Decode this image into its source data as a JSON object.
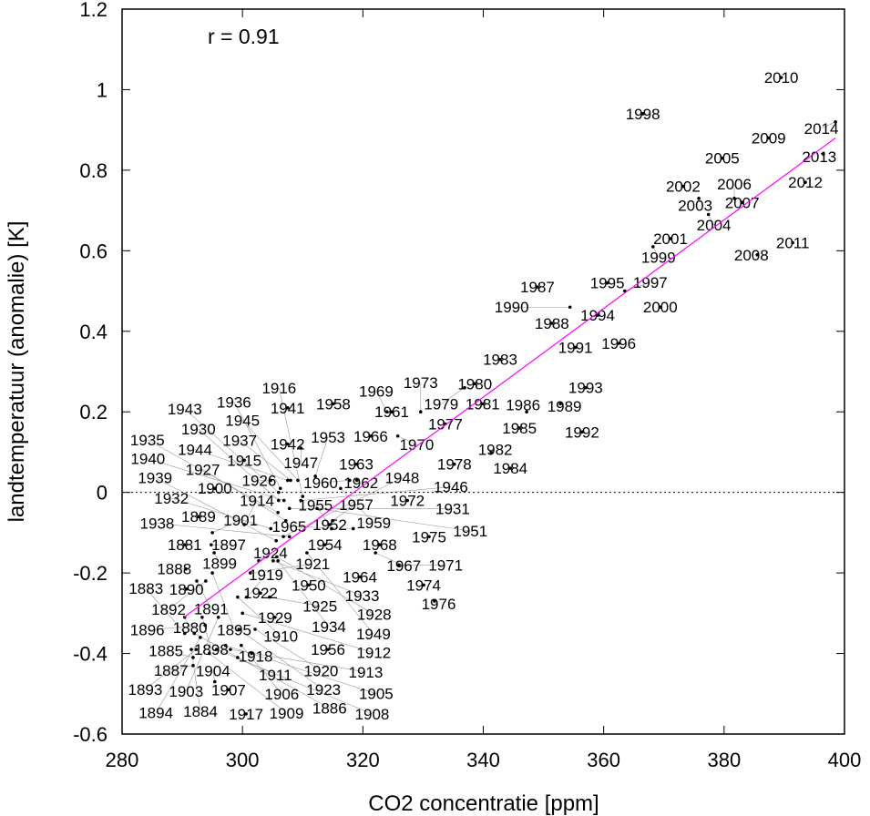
{
  "chart_data": {
    "type": "scatter",
    "title": "",
    "xlabel": "CO2 concentratie [ppm]",
    "ylabel": "landtemperatuur (anomalie) [K]",
    "xlim": [
      280,
      400
    ],
    "ylim": [
      -0.6,
      1.2
    ],
    "xticks": [
      280,
      300,
      320,
      340,
      360,
      380,
      400
    ],
    "yticks": [
      -0.6,
      -0.4,
      -0.2,
      0,
      0.2,
      0.4,
      0.6,
      0.8,
      1,
      1.2
    ],
    "ytick_labels": [
      "-0.6",
      "-0.4",
      "-0.2",
      "0",
      "0.2",
      "0.4",
      "0.6",
      "0.8",
      "1",
      "1.2"
    ],
    "grid": false,
    "annotation": "r =  0.91",
    "zero_line": "dotted",
    "trendline": {
      "color": "#ff00ff",
      "x": [
        290.3,
        398.5
      ],
      "y": [
        -0.31,
        0.88
      ]
    },
    "point_label_color": "#000000",
    "points": [
      {
        "year": "2010",
        "x": 389.5,
        "y": 1.03
      },
      {
        "year": "2014",
        "x": 398.5,
        "y": 0.92
      },
      {
        "year": "1998",
        "x": 366.5,
        "y": 0.94
      },
      {
        "year": "2009",
        "x": 387.4,
        "y": 0.88
      },
      {
        "year": "2013",
        "x": 396.5,
        "y": 0.84
      },
      {
        "year": "2005",
        "x": 379.7,
        "y": 0.83
      },
      {
        "year": "2012",
        "x": 393.5,
        "y": 0.77
      },
      {
        "year": "2002",
        "x": 373.2,
        "y": 0.76
      },
      {
        "year": "2003",
        "x": 375.8,
        "y": 0.73
      },
      {
        "year": "2006",
        "x": 381.7,
        "y": 0.73
      },
      {
        "year": "2007",
        "x": 383.0,
        "y": 0.72
      },
      {
        "year": "2004",
        "x": 377.4,
        "y": 0.69
      },
      {
        "year": "2001",
        "x": 371.1,
        "y": 0.63
      },
      {
        "year": "1999",
        "x": 368.2,
        "y": 0.61
      },
      {
        "year": "2011",
        "x": 391.4,
        "y": 0.62
      },
      {
        "year": "2008",
        "x": 385.5,
        "y": 0.59
      },
      {
        "year": "1987",
        "x": 349.0,
        "y": 0.51
      },
      {
        "year": "1995",
        "x": 360.6,
        "y": 0.52
      },
      {
        "year": "1997",
        "x": 363.5,
        "y": 0.5
      },
      {
        "year": "2000",
        "x": 369.4,
        "y": 0.46
      },
      {
        "year": "1990",
        "x": 354.4,
        "y": 0.46
      },
      {
        "year": "1994",
        "x": 359.0,
        "y": 0.44
      },
      {
        "year": "1988",
        "x": 351.4,
        "y": 0.42
      },
      {
        "year": "1996",
        "x": 362.5,
        "y": 0.37
      },
      {
        "year": "1991",
        "x": 355.3,
        "y": 0.36
      },
      {
        "year": "1983",
        "x": 342.8,
        "y": 0.33
      },
      {
        "year": "1979",
        "x": 336.9,
        "y": 0.26
      },
      {
        "year": "1980",
        "x": 338.6,
        "y": 0.27
      },
      {
        "year": "1993",
        "x": 357.0,
        "y": 0.26
      },
      {
        "year": "1981",
        "x": 339.9,
        "y": 0.22
      },
      {
        "year": "1989",
        "x": 352.8,
        "y": 0.22
      },
      {
        "year": "1986",
        "x": 347.2,
        "y": 0.2
      },
      {
        "year": "1941",
        "x": 307.5,
        "y": 0.21
      },
      {
        "year": "1958",
        "x": 315.1,
        "y": 0.22
      },
      {
        "year": "1961",
        "x": 324.8,
        "y": 0.2
      },
      {
        "year": "1973",
        "x": 329.6,
        "y": 0.2
      },
      {
        "year": "1977",
        "x": 333.7,
        "y": 0.17
      },
      {
        "year": "1966",
        "x": 321.3,
        "y": 0.14
      },
      {
        "year": "1970",
        "x": 325.8,
        "y": 0.14
      },
      {
        "year": "1985",
        "x": 346.0,
        "y": 0.16
      },
      {
        "year": "1992",
        "x": 356.4,
        "y": 0.15
      },
      {
        "year": "1942",
        "x": 307.5,
        "y": 0.12
      },
      {
        "year": "1947",
        "x": 309.7,
        "y": 0.11
      },
      {
        "year": "1982",
        "x": 341.3,
        "y": 0.1
      },
      {
        "year": "1978",
        "x": 335.2,
        "y": 0.07
      },
      {
        "year": "1984",
        "x": 344.5,
        "y": 0.06
      },
      {
        "year": "1915",
        "x": 300.3,
        "y": 0.08
      },
      {
        "year": "1963",
        "x": 318.9,
        "y": 0.07
      },
      {
        "year": "1900",
        "x": 295.4,
        "y": 0.01
      },
      {
        "year": "1926",
        "x": 304.7,
        "y": 0.03
      },
      {
        "year": "1953",
        "x": 312.1,
        "y": 0.04
      },
      {
        "year": "1960",
        "x": 317.8,
        "y": 0.03
      },
      {
        "year": "1962",
        "x": 319.0,
        "y": 0.03
      },
      {
        "year": "1959",
        "x": 316.3,
        "y": 0.01
      },
      {
        "year": "1972",
        "x": 327.4,
        "y": -0.02
      },
      {
        "year": "1965",
        "x": 318.4,
        "y": -0.09
      },
      {
        "year": "1968",
        "x": 322.8,
        "y": -0.13
      },
      {
        "year": "1975",
        "x": 331.0,
        "y": -0.11
      },
      {
        "year": "1967",
        "x": 322.1,
        "y": -0.15
      },
      {
        "year": "1971",
        "x": 326.0,
        "y": -0.18
      },
      {
        "year": "1964",
        "x": 319.5,
        "y": -0.21
      },
      {
        "year": "1974",
        "x": 330.1,
        "y": -0.23
      },
      {
        "year": "1976",
        "x": 331.9,
        "y": -0.27
      },
      {
        "year": "1950",
        "x": 311.0,
        "y": -0.23
      },
      {
        "year": "1929",
        "x": 305.4,
        "y": -0.31
      },
      {
        "year": "1956",
        "x": 314.2,
        "y": -0.39
      },
      {
        "year": "1917",
        "x": 300.6,
        "y": -0.55
      },
      {
        "year": "1904",
        "x": 295.4,
        "y": -0.47
      },
      {
        "year": "1907",
        "x": 297.7,
        "y": -0.49
      },
      {
        "year": "1889",
        "x": 292.7,
        "y": -0.06
      },
      {
        "year": "1901",
        "x": 295.0,
        "y": -0.1
      },
      {
        "year": "1881",
        "x": 290.4,
        "y": -0.13
      },
      {
        "year": "1887",
        "x": 291.8,
        "y": -0.43
      },
      {
        "year": "1888",
        "x": 290.6,
        "y": -0.19
      },
      {
        "year": "1883",
        "x": 290.4,
        "y": -0.35
      },
      {
        "year": "1880",
        "x": 290.4,
        "y": -0.31
      },
      {
        "year": "1884",
        "x": 291.5,
        "y": -0.39
      },
      {
        "year": "1885",
        "x": 291.8,
        "y": -0.41
      },
      {
        "year": "1886",
        "x": 292.0,
        "y": -0.35
      },
      {
        "year": "1890",
        "x": 290.7,
        "y": -0.24
      },
      {
        "year": "1891",
        "x": 292.4,
        "y": -0.22
      },
      {
        "year": "1892",
        "x": 293.9,
        "y": -0.22
      },
      {
        "year": "1893",
        "x": 292.3,
        "y": -0.39
      },
      {
        "year": "1894",
        "x": 293.0,
        "y": -0.36
      },
      {
        "year": "1895",
        "x": 295.0,
        "y": -0.2
      },
      {
        "year": "1896",
        "x": 293.8,
        "y": -0.33
      },
      {
        "year": "1897",
        "x": 294.8,
        "y": -0.13
      },
      {
        "year": "1898",
        "x": 293.3,
        "y": -0.31
      },
      {
        "year": "1899",
        "x": 295.3,
        "y": -0.15
      },
      {
        "year": "1903",
        "x": 296.0,
        "y": -0.31
      },
      {
        "year": "1905",
        "x": 297.2,
        "y": -0.38
      },
      {
        "year": "1906",
        "x": 299.8,
        "y": -0.38
      },
      {
        "year": "1908",
        "x": 295.7,
        "y": -0.39
      },
      {
        "year": "1909",
        "x": 294.5,
        "y": -0.4
      },
      {
        "year": "1910",
        "x": 299.2,
        "y": -0.26
      },
      {
        "year": "1911",
        "x": 299.2,
        "y": -0.41
      },
      {
        "year": "1912",
        "x": 300.0,
        "y": -0.3
      },
      {
        "year": "1913",
        "x": 298.0,
        "y": -0.39
      },
      {
        "year": "1914",
        "x": 300.3,
        "y": -0.08
      },
      {
        "year": "1916",
        "x": 310.0,
        "y": -0.01
      },
      {
        "year": "1918",
        "x": 301.5,
        "y": -0.4
      },
      {
        "year": "1919",
        "x": 300.7,
        "y": -0.26
      },
      {
        "year": "1920",
        "x": 302.1,
        "y": -0.34
      },
      {
        "year": "1921",
        "x": 301.3,
        "y": -0.2
      },
      {
        "year": "1922",
        "x": 303.0,
        "y": -0.25
      },
      {
        "year": "1923",
        "x": 299.4,
        "y": -0.34
      },
      {
        "year": "1924",
        "x": 302.7,
        "y": -0.17
      },
      {
        "year": "1925",
        "x": 304.5,
        "y": -0.26
      },
      {
        "year": "1927",
        "x": 307.2,
        "y": -0.07
      },
      {
        "year": "1928",
        "x": 305.7,
        "y": -0.16
      },
      {
        "year": "1930",
        "x": 306.0,
        "y": -0.02
      },
      {
        "year": "1931",
        "x": 307.8,
        "y": -0.04
      },
      {
        "year": "1932",
        "x": 304.7,
        "y": -0.09
      },
      {
        "year": "1933",
        "x": 305.1,
        "y": -0.17
      },
      {
        "year": "1934",
        "x": 305.9,
        "y": -0.17
      },
      {
        "year": "1935",
        "x": 305.9,
        "y": -0.05
      },
      {
        "year": "1936",
        "x": 306.3,
        "y": 0.01
      },
      {
        "year": "1937",
        "x": 308.0,
        "y": 0.03
      },
      {
        "year": "1938",
        "x": 307.8,
        "y": -0.11
      },
      {
        "year": "1939",
        "x": 305.6,
        "y": -0.12
      },
      {
        "year": "1940",
        "x": 306.9,
        "y": -0.02
      },
      {
        "year": "1943",
        "x": 306.0,
        "y": 0.0
      },
      {
        "year": "1944",
        "x": 307.5,
        "y": 0.03
      },
      {
        "year": "1945",
        "x": 309.2,
        "y": 0.03
      },
      {
        "year": "1946",
        "x": 309.7,
        "y": -0.02
      },
      {
        "year": "1948",
        "x": 306.8,
        "y": -0.11
      },
      {
        "year": "1949",
        "x": 310.7,
        "y": -0.15
      },
      {
        "year": "1951",
        "x": 312.4,
        "y": -0.04
      },
      {
        "year": "1952",
        "x": 314.5,
        "y": -0.08
      },
      {
        "year": "1954",
        "x": 313.7,
        "y": -0.13
      },
      {
        "year": "1955",
        "x": 314.8,
        "y": -0.09
      },
      {
        "year": "1957",
        "x": 315.0,
        "y": -0.07
      },
      {
        "year": "1969",
        "x": 324.0,
        "y": 0.2
      }
    ]
  }
}
